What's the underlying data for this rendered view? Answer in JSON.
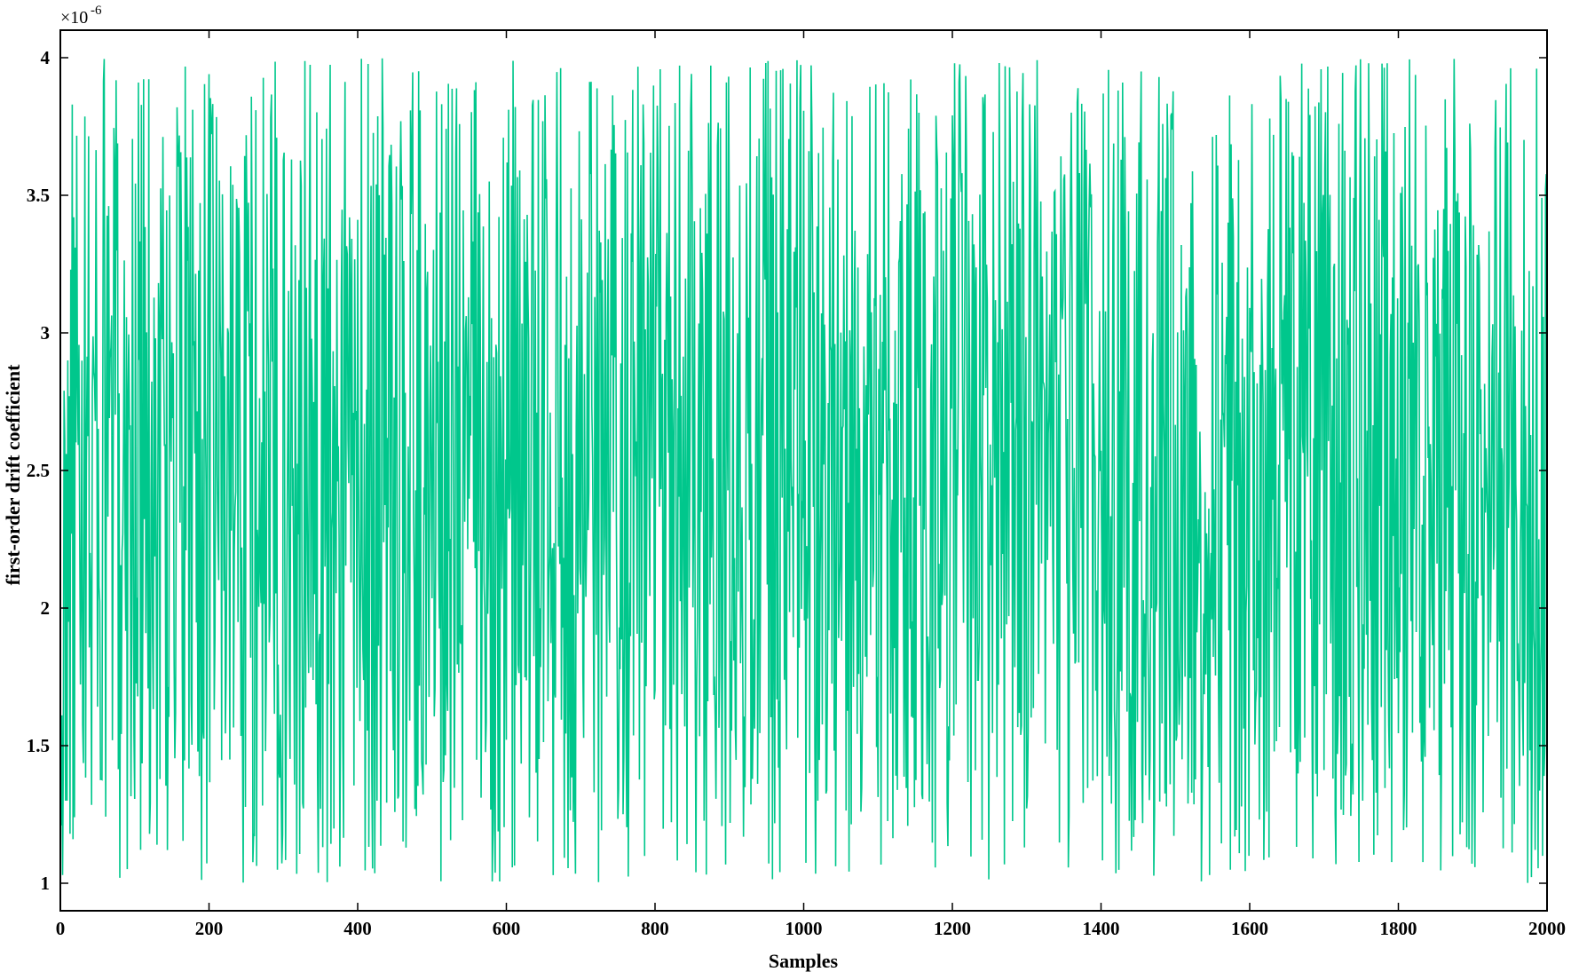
{
  "chart_data": {
    "type": "line",
    "title": "",
    "xlabel": "Samples",
    "ylabel": "first-order drift coefficient",
    "y_exponent": {
      "base": "×10",
      "power": "-6"
    },
    "xlim": [
      0,
      2000
    ],
    "ylim": [
      0.9,
      4.1
    ],
    "x_ticks": [
      0,
      200,
      400,
      600,
      800,
      1000,
      1200,
      1400,
      1600,
      1800,
      2000
    ],
    "x_tick_labels": [
      "0",
      "200",
      "400",
      "600",
      "800",
      "1000",
      "1200",
      "1400",
      "1600",
      "1800",
      "2000"
    ],
    "y_ticks": [
      1,
      1.5,
      2,
      2.5,
      3,
      3.5,
      4
    ],
    "y_tick_labels": [
      "1",
      "1.5",
      "2",
      "2.5",
      "3",
      "3.5",
      "4"
    ],
    "grid": false,
    "legend": "none",
    "series": [
      {
        "color": "#00c78c",
        "sampling": {
          "x_start": 1,
          "x_step": 1,
          "count": 2000
        },
        "distribution": "uniform",
        "value_range": [
          1.0,
          4.0
        ],
        "first_values": [
          1.21,
          1.61,
          1.03,
          1.45,
          2.79,
          2.61,
          1.3,
          2.56,
          1.3,
          2.9,
          1.95,
          2.77,
          1.18,
          3.23,
          2.27,
          3.83,
          1.16,
          3.42,
          1.24,
          3.31
        ]
      }
    ]
  }
}
